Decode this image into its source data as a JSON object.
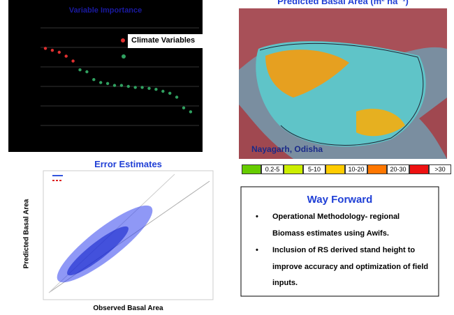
{
  "importance_panel": {
    "title": "Variable Importance",
    "legend_label": "Climate Variables",
    "values": [
      79,
      77,
      75,
      71,
      66,
      57,
      55,
      47,
      44,
      43,
      41,
      41,
      40,
      39,
      39,
      38,
      37,
      35,
      33,
      29,
      18,
      14
    ],
    "colors": [
      "#e03030",
      "#e03030",
      "#e03030",
      "#e03030",
      "#e03030",
      "#30a060",
      "#30a060",
      "#30a060",
      "#30a060",
      "#30a060",
      "#30a060",
      "#30a060",
      "#30a060",
      "#30a060",
      "#30a060",
      "#30a060",
      "#30a060",
      "#30a060",
      "#30a060",
      "#30a060",
      "#30a060",
      "#30a060"
    ],
    "ylim": [
      0,
      100
    ]
  },
  "map_panel": {
    "title": "Predicted Basal Area (m² ha⁻¹)",
    "place": "Nayagarh, Odisha",
    "legend": [
      {
        "label": "0.2-5",
        "color": "#66cc00"
      },
      {
        "label": "5-10",
        "color": "#ccee00"
      },
      {
        "label": "10-20",
        "color": "#ffcc00"
      },
      {
        "label": "20-30",
        "color": "#ff7700"
      },
      {
        "label": ">30",
        "color": "#ee1111"
      }
    ]
  },
  "error_panel": {
    "title": "Error Estimates",
    "y_label": "Predicted Basal Area",
    "x_label": "Observed Basal Area"
  },
  "way_forward": {
    "title": "Way Forward",
    "bullets": [
      "Operational Methodology- regional Biomass estimates using Awifs.",
      "Inclusion of RS derived stand height to improve accuracy and optimization of field inputs."
    ]
  }
}
